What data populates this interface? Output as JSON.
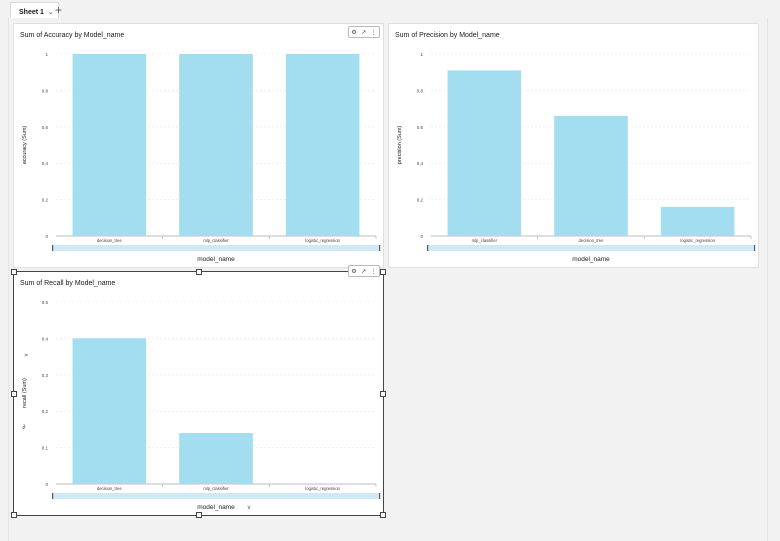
{
  "sheet_tab": {
    "label": "Sheet 1",
    "add_label": "+"
  },
  "visuals": [
    {
      "title": "Sum of Accuracy by Model_name",
      "chart_data": {
        "type": "bar",
        "title": "Sum of Accuracy by Model_name",
        "xlabel": "model_name",
        "ylabel": "accuracy (Sum)",
        "categories": [
          "decision_tree",
          "mlp_classifier",
          "logistic_regression"
        ],
        "values": [
          1,
          1,
          1
        ],
        "ylim": [
          0,
          1
        ],
        "yticks": [
          "0",
          "0.2",
          "0.4",
          "0.6",
          "0.8",
          "1"
        ],
        "bar_color": "#a3def0",
        "grid": true
      }
    },
    {
      "title": "Sum of Precision by Model_name",
      "chart_data": {
        "type": "bar",
        "title": "Sum of Precision by Model_name",
        "xlabel": "model_name",
        "ylabel": "precision (Sum)",
        "categories": [
          "mlp_classifier",
          "decision_tree",
          "logistic_regression"
        ],
        "values": [
          0.91,
          0.66,
          0.16
        ],
        "ylim": [
          0,
          1
        ],
        "yticks": [
          "0",
          "0.2",
          "0.4",
          "0.6",
          "0.8",
          "1"
        ],
        "bar_color": "#a3def0",
        "grid": true
      }
    },
    {
      "title": "Sum of Recall by Model_name",
      "chart_data": {
        "type": "bar",
        "title": "Sum of Recall by Model_name",
        "xlabel": "model_name",
        "ylabel": "recall (Sum)",
        "categories": [
          "decision_tree",
          "mlp_classifier",
          "logistic_regression"
        ],
        "values": [
          0.4,
          0.14,
          0.001
        ],
        "ylim": [
          0,
          0.5
        ],
        "yticks": [
          "0",
          "0.1",
          "0.2",
          "0.3",
          "0.4",
          "0.5"
        ],
        "bar_color": "#a3def0",
        "grid": true
      }
    }
  ],
  "colors": {
    "bar": "#a3def0",
    "scrollbar": "#cde9f6",
    "selected_border": "#444444"
  }
}
